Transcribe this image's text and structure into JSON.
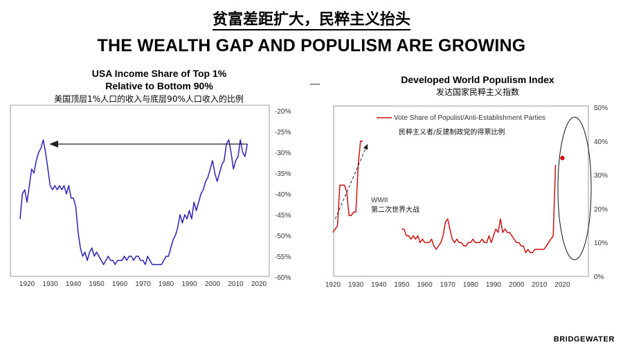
{
  "header": {
    "title_cn": "贫富差距扩大，民粹主义抬头",
    "title_en": "THE WEALTH GAP AND POPULISM ARE GROWING"
  },
  "footer": {
    "brand": "BRIDGEWATER"
  },
  "chart_data": [
    {
      "type": "line",
      "title": "USA Income Share of Top 1% Relative to Bottom 90%",
      "title_line1": "USA Income Share of Top 1%",
      "title_line2": "Relative to Bottom 90%",
      "subtitle": "美国顶层1%人口的收入与底层90%人口收入的比例",
      "y_axis_side": "right",
      "xlim": [
        1917,
        2020
      ],
      "ylim": [
        -60,
        -20
      ],
      "x_ticks": [
        "1920",
        "1930",
        "1940",
        "1950",
        "1960",
        "1970",
        "1980",
        "1990",
        "2000",
        "2010",
        "2020"
      ],
      "y_ticks": [
        "-20%",
        "-25%",
        "-30%",
        "-35%",
        "-40%",
        "-45%",
        "-50%",
        "-55%",
        "-60%"
      ],
      "line_color": "#2b22b8",
      "arrow": {
        "from": [
          2015,
          -28
        ],
        "to": [
          1930,
          -28
        ]
      },
      "series": [
        {
          "x": [
            1917,
            1918,
            1919,
            1920,
            1921,
            1922,
            1923,
            1924,
            1925,
            1926,
            1927,
            1928,
            1929,
            1930,
            1931,
            1932,
            1933,
            1934,
            1935,
            1936,
            1937,
            1938,
            1939,
            1940,
            1941,
            1942,
            1943,
            1944,
            1945,
            1946,
            1947,
            1948,
            1949,
            1950,
            1951,
            1952,
            1953,
            1954,
            1955,
            1956,
            1957,
            1958,
            1959,
            1960,
            1961,
            1962,
            1963,
            1964,
            1965,
            1966,
            1967,
            1968,
            1969,
            1970,
            1971,
            1972,
            1973,
            1974,
            1975,
            1976,
            1977,
            1978,
            1979,
            1980,
            1981,
            1982,
            1983,
            1984,
            1985,
            1986,
            1987,
            1988,
            1989,
            1990,
            1991,
            1992,
            1993,
            1994,
            1995,
            1996,
            1997,
            1998,
            1999,
            2000,
            2001,
            2002,
            2003,
            2004,
            2005,
            2006,
            2007,
            2008,
            2009,
            2010,
            2011,
            2012,
            2013,
            2014,
            2015
          ],
          "y": [
            -46,
            -40,
            -39,
            -42,
            -38,
            -34,
            -35,
            -32,
            -30,
            -29,
            -27,
            -30,
            -34,
            -38,
            -39,
            -38,
            -39,
            -38,
            -39,
            -38,
            -40,
            -38,
            -41,
            -41,
            -43,
            -49,
            -53,
            -55,
            -54,
            -56,
            -54,
            -53,
            -55,
            -54,
            -55,
            -56,
            -57,
            -56,
            -55,
            -56,
            -56,
            -57,
            -56,
            -56,
            -56,
            -55,
            -56,
            -55,
            -55,
            -56,
            -55,
            -55,
            -56,
            -56,
            -57,
            -55,
            -56,
            -57,
            -57,
            -57,
            -57,
            -57,
            -56,
            -55,
            -55,
            -53,
            -51,
            -50,
            -48,
            -45,
            -47,
            -45,
            -46,
            -44,
            -46,
            -42,
            -44,
            -42,
            -40,
            -39,
            -37,
            -36,
            -34,
            -32,
            -35,
            -37,
            -35,
            -33,
            -32,
            -28,
            -27,
            -30,
            -34,
            -32,
            -31,
            -27,
            -30,
            -31,
            -28
          ]
        }
      ]
    },
    {
      "type": "line",
      "title": "Developed World Populism Index",
      "subtitle": "发达国家民粹主义指数",
      "y_axis_side": "right",
      "xlim": [
        1920,
        2025
      ],
      "ylim": [
        0,
        50
      ],
      "x_ticks": [
        "1920",
        "1930",
        "1940",
        "1950",
        "1960",
        "1970",
        "1980",
        "1990",
        "2000",
        "2010",
        "2020"
      ],
      "y_ticks": [
        "0%",
        "10%",
        "20%",
        "30%",
        "40%",
        "50%"
      ],
      "line_color": "#cc1111",
      "legend": "Vote Share of Populist/Anti-Establishment Parties",
      "legend_cn": "民粹主义者/反建制政党的得票比例",
      "annotation": "WWII",
      "annotation_cn": "第二次世界大战",
      "dashed_trend": {
        "from": [
          1921,
          17
        ],
        "to": [
          1935,
          39
        ]
      },
      "latest_point": {
        "x": 2020,
        "y": 35
      },
      "series": [
        {
          "name": "Vote Share of Populist/Anti-Establishment Parties",
          "segments": [
            {
              "x": [
                1920,
                1921,
                1922,
                1923,
                1924,
                1925,
                1926,
                1927,
                1928,
                1929,
                1930,
                1931,
                1932,
                1933
              ],
              "y": [
                13,
                14,
                15,
                27,
                27,
                27,
                25,
                18,
                18,
                19,
                19,
                33,
                40,
                40
              ]
            },
            {
              "x": [
                1950,
                1951,
                1952,
                1953,
                1954,
                1955,
                1956,
                1957,
                1958,
                1959,
                1960,
                1961,
                1962,
                1963,
                1964,
                1965,
                1966,
                1967,
                1968,
                1969,
                1970,
                1971,
                1972,
                1973,
                1974,
                1975,
                1976,
                1977,
                1978,
                1979,
                1980,
                1981,
                1982,
                1983,
                1984,
                1985,
                1986,
                1987,
                1988,
                1989,
                1990,
                1991,
                1992,
                1993,
                1994,
                1995,
                1996,
                1997,
                1998,
                1999,
                2000,
                2001,
                2002,
                2003,
                2004,
                2005,
                2006,
                2007,
                2008,
                2009,
                2010,
                2011,
                2012,
                2013,
                2014,
                2015,
                2016,
                2017
              ],
              "y": [
                14,
                14,
                12,
                12,
                11,
                12,
                11,
                12,
                10,
                11,
                10,
                10,
                10,
                11,
                9,
                8,
                9,
                10,
                12,
                16,
                17,
                14,
                11,
                10,
                11,
                10,
                10,
                9,
                9,
                10,
                10,
                11,
                10,
                10,
                10,
                11,
                10,
                10,
                12,
                10,
                12,
                14,
                13,
                17,
                13,
                14,
                13,
                13,
                12,
                11,
                10,
                10,
                9,
                9,
                7,
                8,
                7,
                7,
                8,
                8,
                8,
                8,
                8,
                9,
                10,
                11,
                12,
                33
              ]
            }
          ]
        }
      ]
    }
  ]
}
